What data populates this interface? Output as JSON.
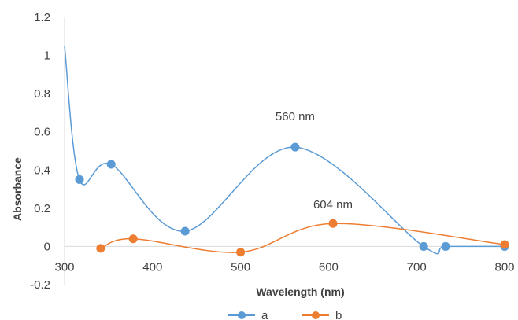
{
  "chart_data": {
    "type": "scatter",
    "title": "",
    "xlabel": "Wavelength (nm)",
    "ylabel": "Absorbance",
    "xlim": [
      300,
      800
    ],
    "ylim": [
      -0.2,
      1.2
    ],
    "xticks": [
      300,
      400,
      500,
      600,
      700,
      800
    ],
    "yticks": [
      -0.2,
      0,
      0.2,
      0.4,
      0.6,
      0.8,
      1,
      1.2
    ],
    "xtick_labels": [
      "300",
      "400",
      "500",
      "600",
      "700",
      "800"
    ],
    "ytick_labels": [
      "-0.2",
      "0",
      "0.2",
      "0.4",
      "0.6",
      "0.8",
      "1",
      "1.2"
    ],
    "grid": false,
    "legend_position": "bottom",
    "series": [
      {
        "name": "a",
        "color": "#5b9bd5",
        "line_start": [
          300,
          1.05
        ],
        "x": [
          317,
          353,
          437,
          562,
          708,
          733,
          800
        ],
        "y": [
          0.35,
          0.43,
          0.08,
          0.52,
          0.0,
          0.0,
          0.0
        ]
      },
      {
        "name": "b",
        "color": "#ed7d31",
        "x": [
          341,
          378,
          500,
          605,
          800
        ],
        "y": [
          -0.01,
          0.04,
          -0.03,
          0.12,
          0.01
        ]
      }
    ],
    "annotations": [
      {
        "text": "560 nm",
        "x": 562,
        "y": 0.66
      },
      {
        "text": "604 nm",
        "x": 605,
        "y": 0.2
      }
    ]
  }
}
